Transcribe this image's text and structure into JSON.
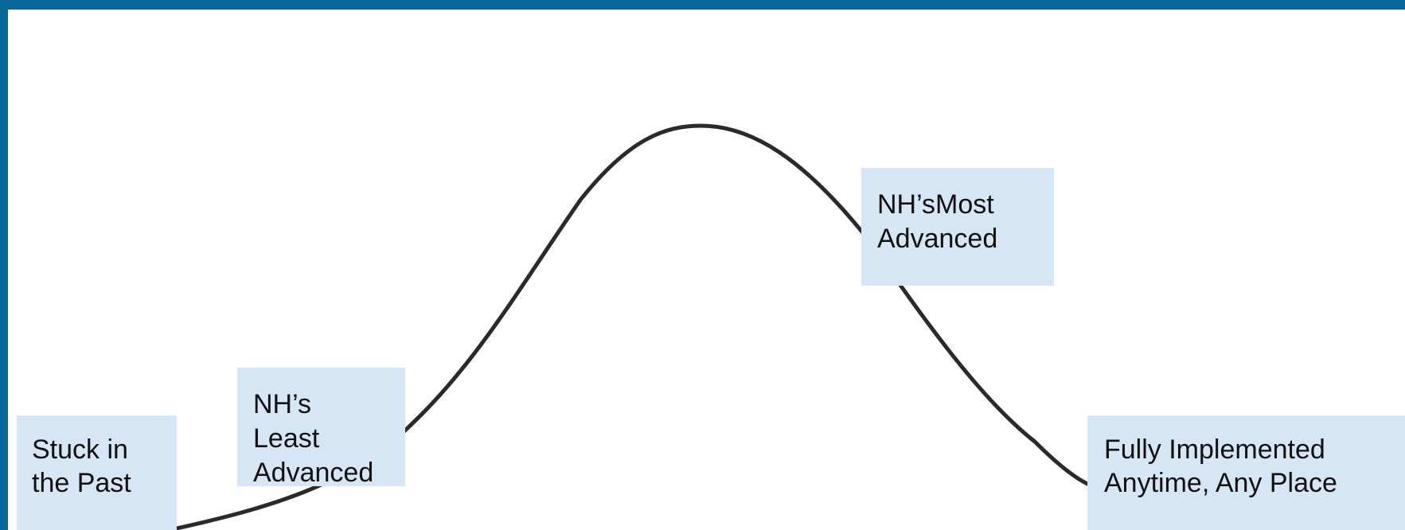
{
  "colors": {
    "frame": "#07679a",
    "label_background": "#d6e6f5",
    "curve": "#2a2a2a"
  },
  "labels": {
    "stuck_in_past": [
      "Stuck in",
      "the Past"
    ],
    "least_advanced": [
      "NH’s",
      "Least",
      "Advanced"
    ],
    "most_advanced": [
      "NH’sMost",
      "Advanced"
    ],
    "fully_implemented": [
      "Fully Implemented",
      "Anytime, Any Place"
    ]
  }
}
